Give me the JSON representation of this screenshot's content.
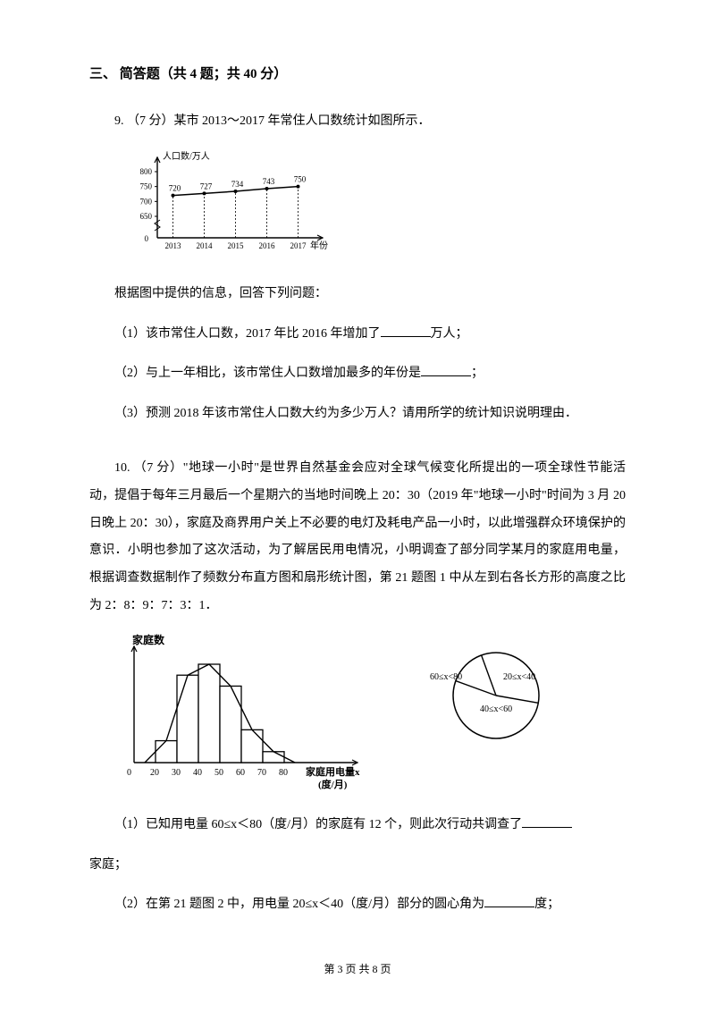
{
  "section": {
    "title": "三、 简答题（共 4 题；共 40 分）"
  },
  "q9": {
    "intro": "9. （7 分）某市 2013～2017 年常住人口数统计如图所示．",
    "chart": {
      "type": "line",
      "y_label": "人口数/万人",
      "x_label": "年份",
      "y_ticks": [
        0,
        650,
        700,
        750,
        800
      ],
      "x_categories": [
        "2013",
        "2014",
        "2015",
        "2016",
        "2017"
      ],
      "values": [
        720,
        727,
        734,
        743,
        750
      ],
      "axis_color": "#000000",
      "line_color": "#000000",
      "dash_color": "#000000",
      "font_size": 9,
      "axis_break": true
    },
    "prompt": "根据图中提供的信息，回答下列问题：",
    "sub1_a": "（1）该市常住人口数，2017 年比 2016 年增加了",
    "sub1_b": "万人；",
    "sub2_a": "（2）与上一年相比，该市常住人口数增加最多的年份是",
    "sub2_b": "；",
    "sub3": "（3）预测 2018 年该市常住人口数大约为多少万人？请用所学的统计知识说明理由．"
  },
  "q10": {
    "intro": "10. （7 分）\"地球一小时\"是世界自然基金会应对全球气候变化所提出的一项全球性节能活动，提倡于每年三月最后一个星期六的当地时间晚上 20：30（2019 年\"地球一小时\"时间为 3 月 20 日晚上 20：30），家庭及商界用户关上不必要的电灯及耗电产品一小时，以此增强群众环境保护的意识．小明也参加了这次活动，为了解居民用电情况，小明调查了部分同学某月的家庭用电量，根据调查数据制作了频数分布直方图和扇形统计图，第 21 题图 1 中从左到右各长方形的高度之比为 2：8：9：7：3：1．",
    "histogram": {
      "type": "histogram",
      "y_label": "家庭数",
      "x_label": "家庭用电量x\n(度/月)",
      "x_ticks": [
        0,
        20,
        30,
        40,
        50,
        60,
        70,
        80
      ],
      "heights": [
        2,
        8,
        9,
        7,
        3,
        1
      ],
      "axis_color": "#000000",
      "fill": "#ffffff",
      "font_size": 10,
      "label_font_size": 12
    },
    "pie": {
      "type": "pie",
      "labels": {
        "top_left": "60≤x<80",
        "top_right": "20≤x<40",
        "bottom": "40≤x<60"
      },
      "stroke": "#000000",
      "font_size": 10
    },
    "sub1_a": "（1）已知用电量 60≤x＜80（度/月）的家庭有 12 个，则此次行动共调查了",
    "sub1_b": "家庭；",
    "sub2_a": "（2）在第 21 题图 2 中，用电量 20≤x＜40（度/月）部分的圆心角为",
    "sub2_b": "度；"
  },
  "footer": {
    "text": "第 3 页 共 8 页"
  }
}
